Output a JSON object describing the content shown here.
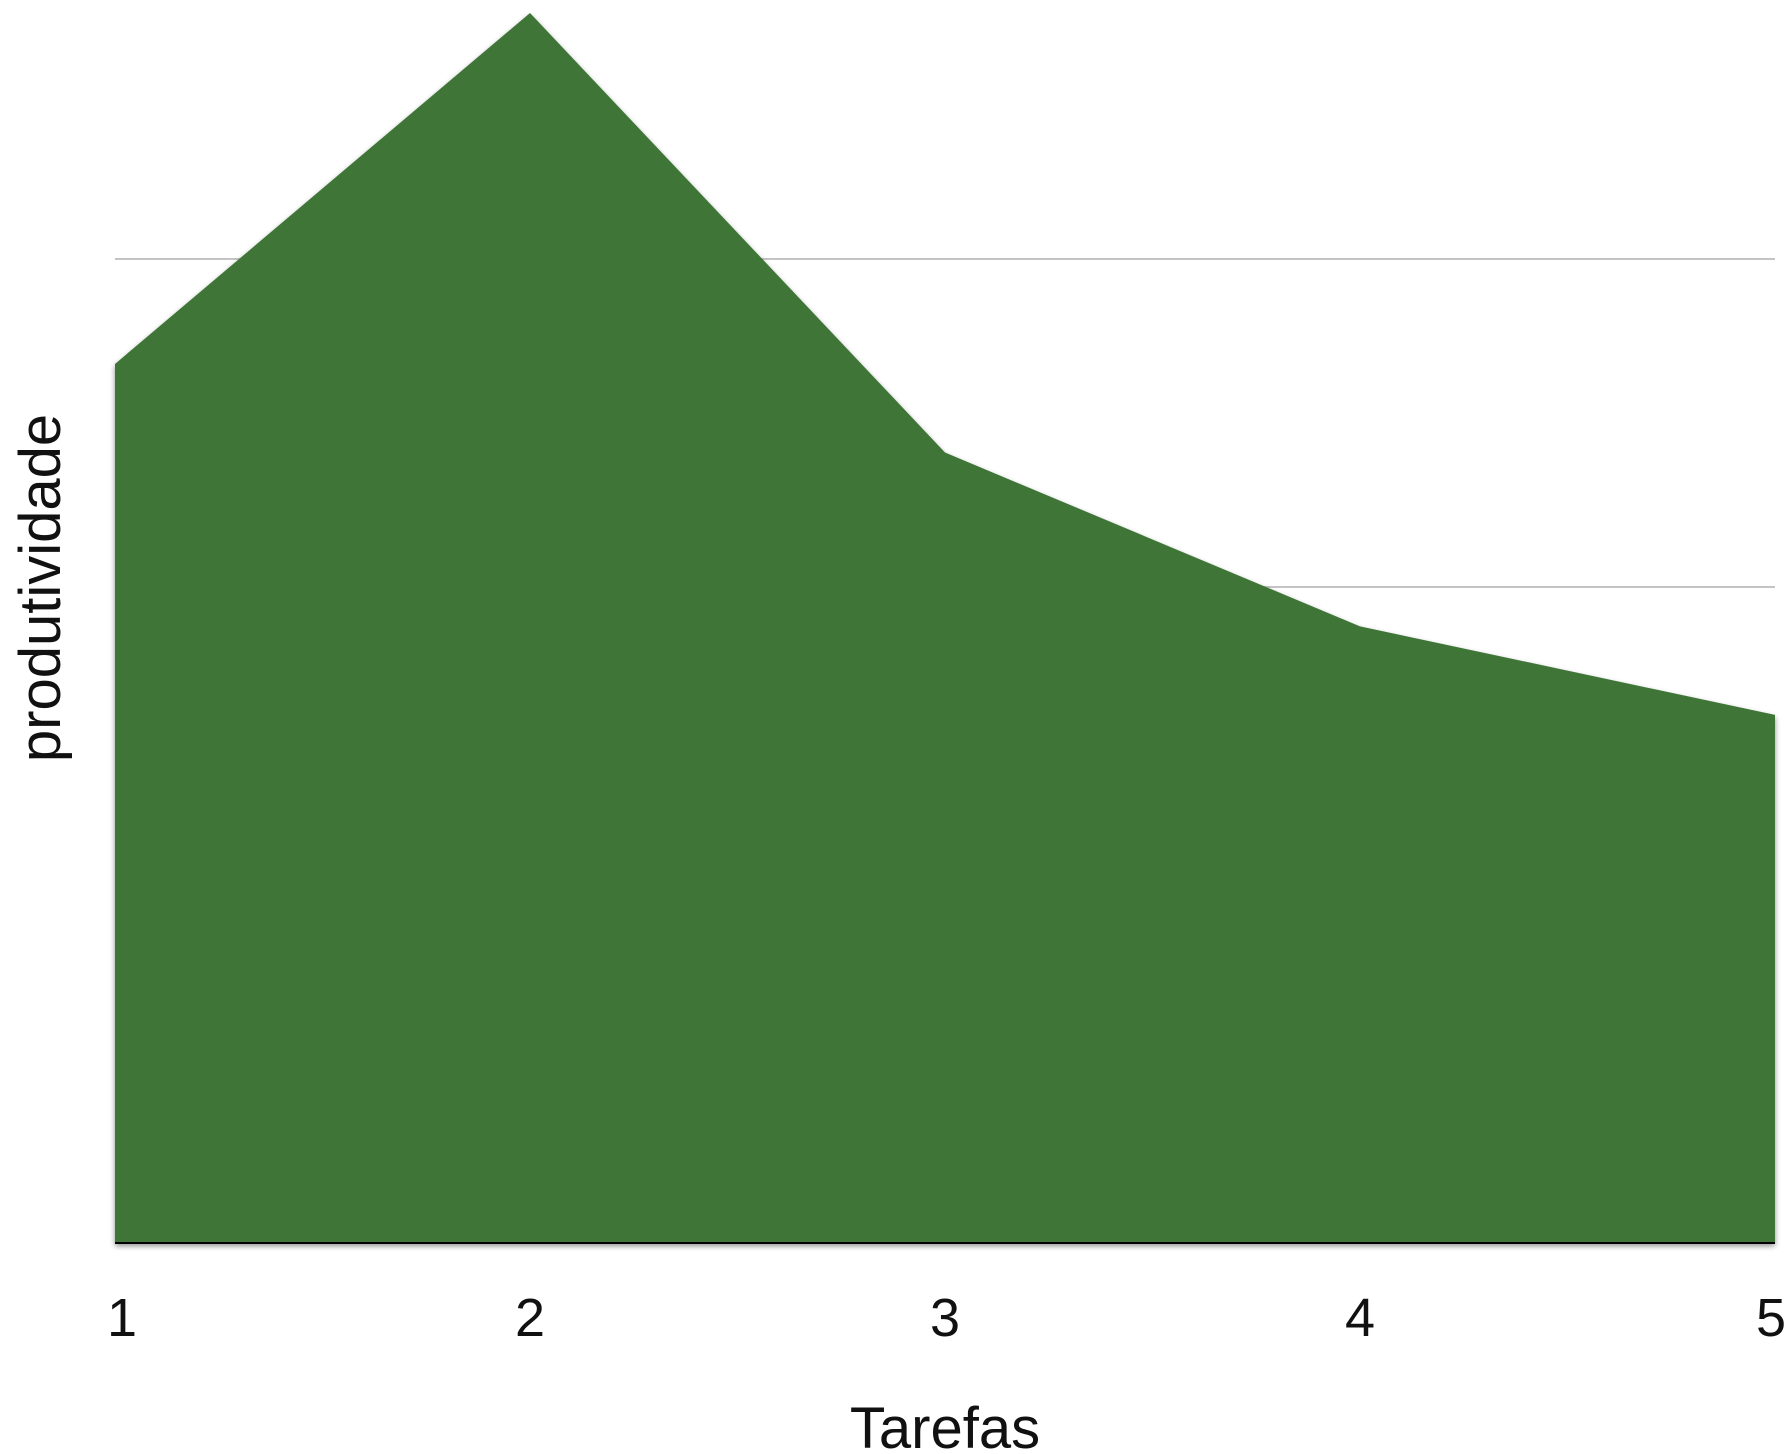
{
  "chart_data": {
    "type": "area",
    "x": [
      "1",
      "2",
      "3",
      "4",
      "5"
    ],
    "series": [
      {
        "values": [
          2.68,
          3.75,
          2.41,
          1.88,
          1.61
        ],
        "color": "#3f7439"
      }
    ],
    "xlabel": "Tarefas",
    "ylabel": "produtividade",
    "ylim": [
      0,
      3.75
    ],
    "gridlines": [
      2,
      3
    ],
    "grid": true,
    "y_tick_labels": false,
    "legend": "none",
    "colors": {
      "area": "#3f7439",
      "grid": "#c4c4c4",
      "axis": "#000000"
    }
  }
}
